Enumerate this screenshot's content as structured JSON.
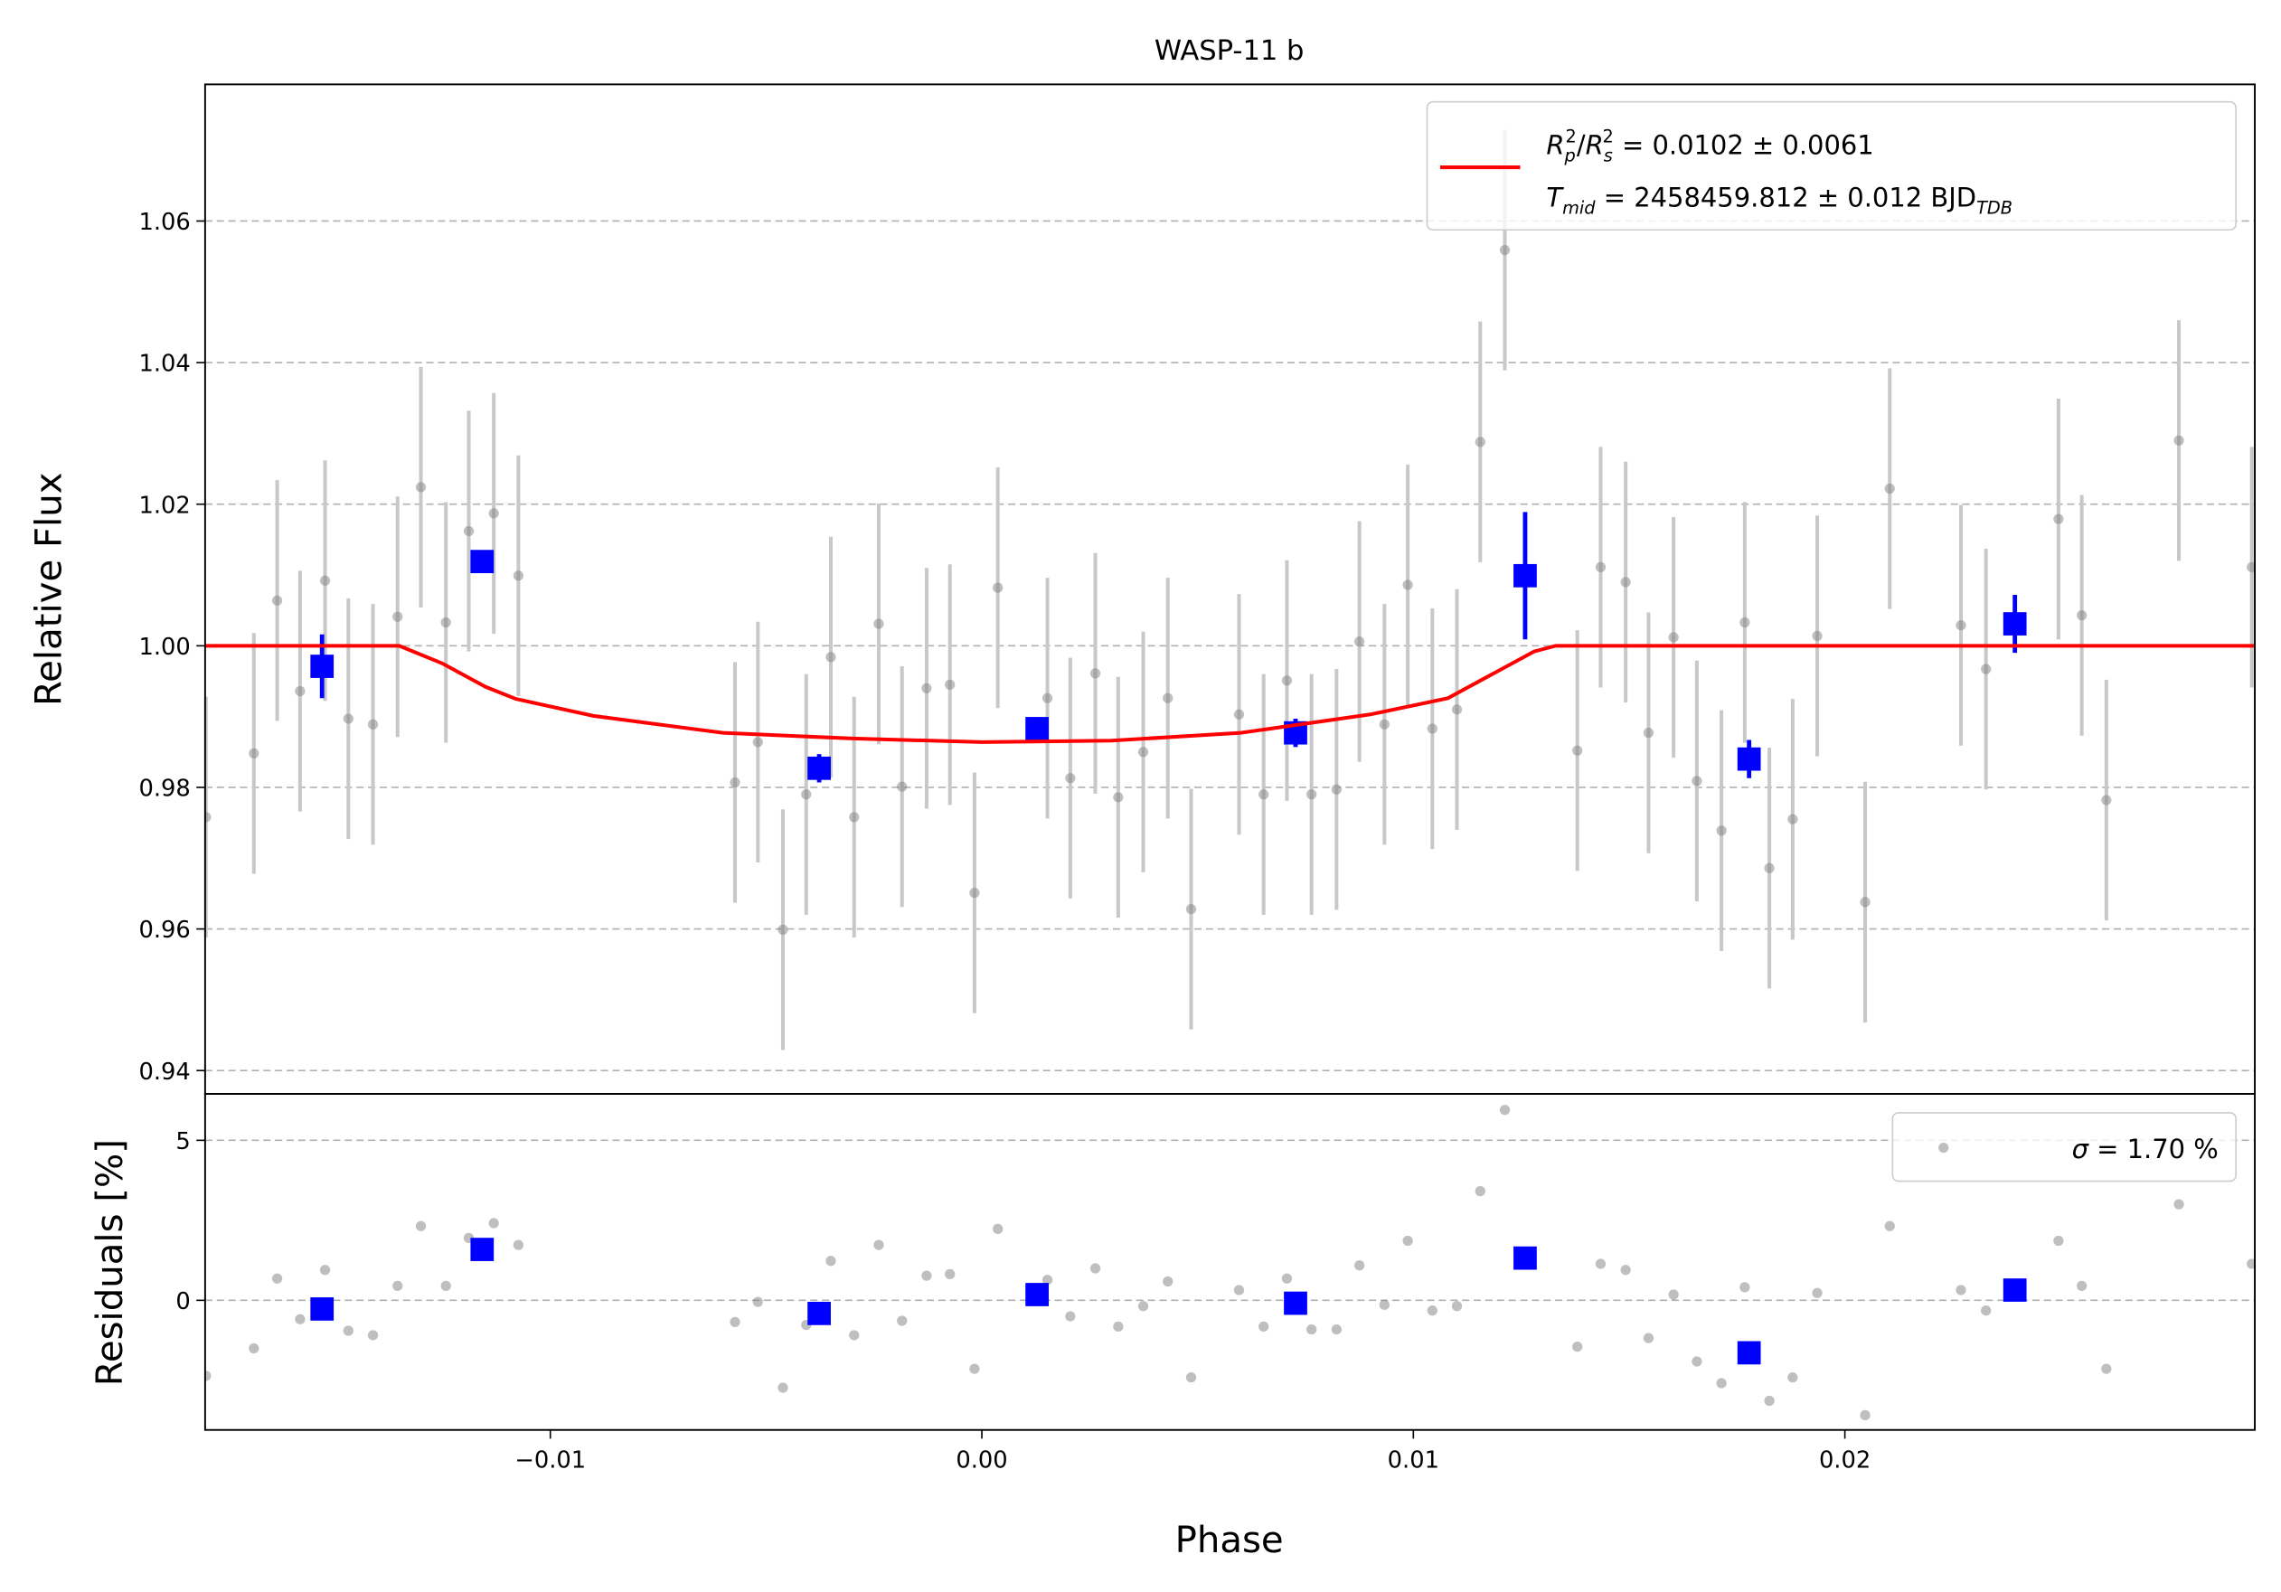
{
  "chart_data": [
    {
      "type": "scatter",
      "title": "WASP-11 b",
      "ylabel": "Relative Flux",
      "xlim": [
        -0.018,
        0.0295
      ],
      "ylim": [
        0.9367,
        1.0793
      ],
      "yticks": [
        0.94,
        0.96,
        0.98,
        {
          "value": 1.0,
          "label": "1.00"
        },
        1.02,
        1.04,
        1.06
      ],
      "grid": true,
      "legend": "upper right",
      "series": [
        {
          "color": "#808080",
          "x": [
            -0.01798,
            -0.01687,
            -0.01633,
            -0.0158,
            -0.01522,
            -0.01468,
            -0.01411,
            -0.01354,
            -0.013,
            -0.01242,
            -0.01189,
            -0.01131,
            -0.01074,
            -0.00572,
            -0.00519,
            -0.00461,
            -0.00407,
            -0.0035,
            -0.00296,
            -0.00239,
            -0.00185,
            -0.00128,
            -0.00074,
            -0.00017,
            0.00037,
            0.00152,
            0.00205,
            0.00263,
            0.00316,
            0.00374,
            0.00431,
            0.00485,
            0.00596,
            0.00653,
            0.00707,
            0.00764,
            0.00822,
            0.00875,
            0.00933,
            0.00987,
            0.01044,
            0.01101,
            0.01155,
            0.01212,
            0.0138,
            0.01434,
            0.01492,
            0.01545,
            0.01603,
            0.01657,
            0.01714,
            0.01768,
            0.01825,
            0.01879,
            0.01936,
            0.02047,
            0.02104,
            0.02269,
            0.02327,
            0.02495,
            0.02549,
            0.02606,
            0.02774,
            0.02943
          ],
          "values": [
            0.9758,
            0.9848,
            1.0064,
            0.9936,
            1.0092,
            0.9897,
            0.9889,
            1.0041,
            1.0224,
            1.0033,
            1.0162,
            1.0187,
            1.0099,
            0.9807,
            0.9864,
            0.9599,
            0.979,
            0.9984,
            0.9758,
            1.0031,
            0.9801,
            0.994,
            0.9945,
            0.9651,
            1.0082,
            0.9926,
            0.9813,
            0.9961,
            0.9786,
            0.985,
            0.9926,
            0.9628,
            0.9903,
            0.979,
            0.9951,
            0.979,
            0.9797,
            1.0006,
            0.9889,
            1.0086,
            0.9883,
            0.991,
            1.0288,
            1.0559,
            0.9852,
            1.0111,
            1.009,
            0.9877,
            1.0012,
            0.9809,
            0.9739,
            1.0033,
            0.9686,
            0.9755,
            1.0014,
            0.9638,
            1.0222,
            1.0029,
            0.9967,
            1.0179,
            1.0043,
            0.9782,
            1.029,
            1.0111
          ],
          "errors": [
            0.017,
            0.017,
            0.017,
            0.017,
            0.017,
            0.017,
            0.017,
            0.017,
            0.017,
            0.017,
            0.017,
            0.017,
            0.017,
            0.017,
            0.017,
            0.017,
            0.017,
            0.017,
            0.017,
            0.017,
            0.017,
            0.017,
            0.017,
            0.017,
            0.017,
            0.017,
            0.017,
            0.017,
            0.017,
            0.017,
            0.017,
            0.017,
            0.017,
            0.017,
            0.017,
            0.017,
            0.017,
            0.017,
            0.017,
            0.017,
            0.017,
            0.017,
            0.017,
            0.017,
            0.017,
            0.017,
            0.017,
            0.017,
            0.017,
            0.017,
            0.017,
            0.017,
            0.017,
            0.017,
            0.017,
            0.017,
            0.017,
            0.017,
            0.017,
            0.017,
            0.017,
            0.017,
            0.017,
            0.017
          ]
        },
        {
          "color": "#0000ff",
          "marker": "square",
          "x": [
            -0.01529,
            -0.01158,
            -0.00377,
            0.00128,
            0.00727,
            0.01259,
            0.01778,
            0.02394
          ],
          "values": [
            0.9971,
            1.0119,
            0.9827,
            0.9883,
            0.9877,
            1.0099,
            0.984,
            1.0031
          ],
          "errors": [
            0.0045,
            0.0014,
            0.002,
            0.0016,
            0.002,
            0.009,
            0.0027,
            0.0041
          ]
        },
        {
          "color": "#ff0000",
          "style": "line",
          "name": [
            [
              "R",
              "p",
              "2",
              "/",
              "R",
              "s",
              "2",
              " = 0.0102 ± 0.0061"
            ],
            [
              "T",
              "mid",
              " = 2458459.812 ± 0.012 BJD",
              "TDB"
            ]
          ],
          "x": [
            -0.018,
            -0.0135,
            -0.0125,
            -0.0115,
            -0.0108,
            -0.009,
            -0.006,
            -0.003,
            0,
            0.003,
            0.006,
            0.009,
            0.0108,
            0.0118,
            0.0128,
            0.0133,
            0.0295
          ],
          "values": [
            1.0,
            1.0,
            0.9975,
            0.9942,
            0.9925,
            0.9901,
            0.9877,
            0.9869,
            0.9864,
            0.9866,
            0.9877,
            0.9903,
            0.9926,
            0.9959,
            0.9992,
            1.0,
            1.0
          ]
        }
      ]
    },
    {
      "type": "scatter",
      "ylabel": "Residuals [%]",
      "xlabel": "Phase",
      "xlim": [
        -0.018,
        0.0295
      ],
      "ylim": [
        -4.05,
        6.45
      ],
      "xticks": [
        {
          "value": -0.01,
          "label": "−0.01"
        },
        {
          "value": 0,
          "label": "0.00"
        },
        0.01,
        0.02
      ],
      "yticks": [
        0,
        5
      ],
      "grid": true,
      "legend": "upper right",
      "series": [
        {
          "color": "#808080",
          "name": [
            "σ",
            " = 1.70 %"
          ],
          "x": [
            -0.01798,
            -0.01687,
            -0.01633,
            -0.0158,
            -0.01522,
            -0.01468,
            -0.01411,
            -0.01354,
            -0.013,
            -0.01242,
            -0.01189,
            -0.01131,
            -0.01074,
            -0.00572,
            -0.00519,
            -0.00461,
            -0.00407,
            -0.0035,
            -0.00296,
            -0.00239,
            -0.00185,
            -0.00128,
            -0.00074,
            -0.00017,
            0.00037,
            0.00152,
            0.00205,
            0.00263,
            0.00316,
            0.00374,
            0.00431,
            0.00485,
            0.00596,
            0.00653,
            0.00707,
            0.00764,
            0.00822,
            0.00875,
            0.00933,
            0.00987,
            0.01044,
            0.01101,
            0.01155,
            0.01212,
            0.0138,
            0.01434,
            0.01492,
            0.01545,
            0.01603,
            0.01657,
            0.01714,
            0.01768,
            0.01825,
            0.01879,
            0.01936,
            0.02047,
            0.02104,
            0.02269,
            0.02327,
            0.02495,
            0.02549,
            0.02606,
            0.02774,
            0.02943
          ],
          "values": [
            -2.36,
            -1.5,
            0.68,
            -0.59,
            0.95,
            -0.95,
            -1.09,
            0.45,
            2.32,
            0.45,
            1.95,
            2.41,
            1.73,
            -0.68,
            -0.05,
            -2.73,
            -0.77,
            1.23,
            -1.09,
            1.73,
            -0.64,
            0.77,
            0.82,
            -2.14,
            2.23,
            0.64,
            -0.5,
            1.0,
            -0.82,
            -0.18,
            0.59,
            -2.41,
            0.32,
            -0.82,
            0.68,
            -0.91,
            -0.91,
            1.09,
            -0.14,
            1.86,
            -0.32,
            -0.18,
            3.41,
            5.95,
            -1.45,
            1.14,
            0.95,
            -1.18,
            0.18,
            -1.91,
            -2.59,
            0.41,
            -3.14,
            -2.41,
            0.23,
            -3.59,
            2.32,
            0.32,
            -0.32,
            1.86,
            0.45,
            -2.14,
            3.0,
            1.14
          ]
        },
        {
          "color": "#0000ff",
          "marker": "square",
          "x": [
            -0.01529,
            -0.01158,
            -0.00377,
            0.00128,
            0.00727,
            0.01259,
            0.01778,
            0.02394
          ],
          "values": [
            -0.27,
            1.59,
            -0.41,
            0.18,
            -0.09,
            1.32,
            -1.64,
            0.32
          ]
        }
      ]
    }
  ]
}
